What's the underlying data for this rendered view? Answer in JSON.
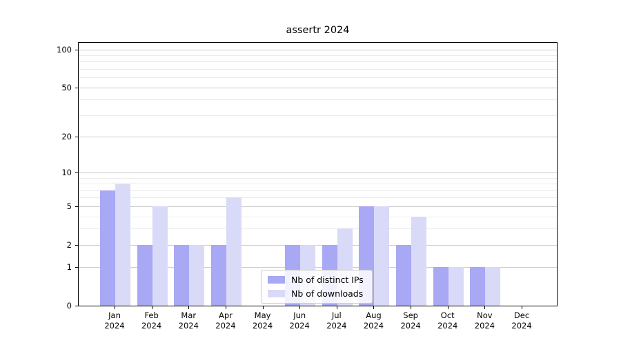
{
  "title": "assertr 2024",
  "chart_data": {
    "type": "bar",
    "title": "assertr 2024",
    "categories": [
      "Jan 2024",
      "Feb 2024",
      "Mar 2024",
      "Apr 2024",
      "May 2024",
      "Jun 2024",
      "Jul 2024",
      "Aug 2024",
      "Sep 2024",
      "Oct 2024",
      "Nov 2024",
      "Dec 2024"
    ],
    "x_tick_line1": [
      "Jan",
      "Feb",
      "Mar",
      "Apr",
      "May",
      "Jun",
      "Jul",
      "Aug",
      "Sep",
      "Oct",
      "Nov",
      "Dec"
    ],
    "x_tick_line2": [
      "2024",
      "2024",
      "2024",
      "2024",
      "2024",
      "2024",
      "2024",
      "2024",
      "2024",
      "2024",
      "2024",
      "2024"
    ],
    "series": [
      {
        "name": "Nb of distinct IPs",
        "color": "#a8a8f5",
        "values": [
          7,
          2,
          2,
          2,
          0,
          2,
          2,
          5,
          2,
          1,
          1,
          0
        ]
      },
      {
        "name": "Nb of downloads",
        "color": "#d9d9f8",
        "values": [
          8,
          5,
          2,
          6,
          0,
          2,
          3,
          5,
          4,
          1,
          1,
          0
        ]
      }
    ],
    "yscale": "log1p",
    "ylim": [
      0,
      113
    ],
    "yticks_major": [
      0,
      1,
      2,
      5,
      10,
      20,
      50,
      100
    ],
    "yticks_minor": [
      3,
      4,
      6,
      7,
      8,
      9,
      30,
      40,
      60,
      70,
      80,
      90
    ],
    "grid": true,
    "legend_position": "lower center inside",
    "colors": {
      "major_grid": "#cccccc",
      "minor_grid": "#ebebeb",
      "axis": "#000000",
      "background": "#ffffff"
    }
  }
}
